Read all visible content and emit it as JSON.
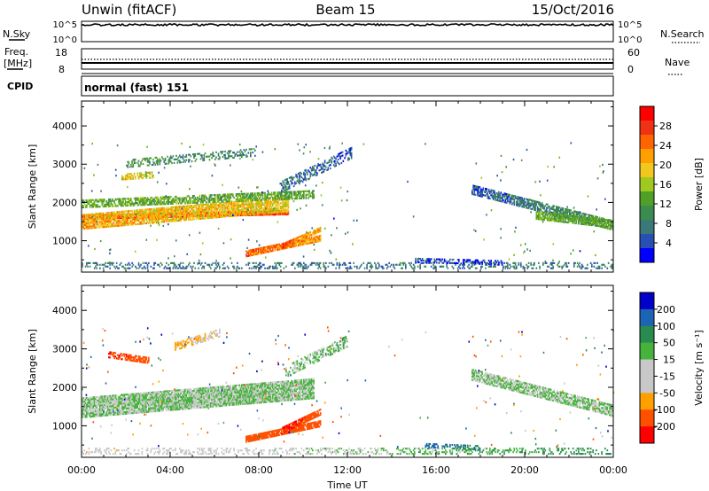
{
  "header": {
    "station": "Unwin (fitACF)",
    "beam": "Beam 15",
    "date": "15/Oct/2016"
  },
  "noise_panel": {
    "left_label": "N.Sky",
    "right_label": "N.Search",
    "ticks_left": [
      "10^5",
      "10^0"
    ],
    "ticks_right": [
      "10^5",
      "10^0"
    ]
  },
  "freq_panel": {
    "left_label_1": "Freq.",
    "left_label_2": "[MHz]",
    "right_label": "Nave",
    "ticks_left": [
      "18",
      "8"
    ],
    "ticks_right": [
      "60",
      "0"
    ]
  },
  "cpid": {
    "label": "CPID",
    "mode": "normal (fast) 151"
  },
  "chart_data": [
    {
      "type": "heatmap",
      "name": "Power",
      "ylabel": "Slant Range [km]",
      "xlabel": "Time UT",
      "x_ticks": [
        "00:00",
        "04:00",
        "08:00",
        "12:00",
        "16:00",
        "20:00",
        "00:00"
      ],
      "xlim_hours": [
        0,
        24
      ],
      "y_ticks": [
        1000,
        2000,
        3000,
        4000
      ],
      "ylim": [
        180,
        4650
      ],
      "colorbar_label": "Power [dB]",
      "colorbar_ticks": [
        "28",
        "24",
        "20",
        "16",
        "12",
        "8",
        "4"
      ],
      "colorbar_values": [
        28,
        24,
        20,
        16,
        12,
        8,
        4
      ],
      "colors": [
        "#0000ff",
        "#2850b4",
        "#3c7878",
        "#3c8c50",
        "#50a028",
        "#78b414",
        "#a0c81e",
        "#f0c81e",
        "#ffa000",
        "#ff6400",
        "#f03214",
        "#ff0000"
      ],
      "bands": [
        {
          "t0": 0.0,
          "t1": 9.3,
          "r0": 1600,
          "r1": 1720,
          "v0": 27,
          "v1": 27,
          "th": 100,
          "dens": 0.97
        },
        {
          "t0": 0.0,
          "t1": 9.3,
          "r0": 1480,
          "r1": 1940,
          "v0": 22,
          "v1": 20,
          "th": 380,
          "dens": 0.8
        },
        {
          "t0": 0.0,
          "t1": 10.5,
          "r0": 1950,
          "r1": 2200,
          "v0": 14,
          "v1": 13,
          "th": 200,
          "dens": 0.65
        },
        {
          "t0": 7.4,
          "t1": 10.8,
          "r0": 640,
          "r1": 1050,
          "v0": 26,
          "v1": 22,
          "th": 140,
          "dens": 0.9
        },
        {
          "t0": 9.0,
          "t1": 10.8,
          "r0": 850,
          "r1": 1300,
          "v0": 27,
          "v1": 20,
          "th": 120,
          "dens": 0.85
        },
        {
          "t0": 2.0,
          "t1": 7.8,
          "r0": 3000,
          "r1": 3300,
          "v0": 11,
          "v1": 9,
          "th": 200,
          "dens": 0.4
        },
        {
          "t0": 1.8,
          "t1": 3.2,
          "r0": 2650,
          "r1": 2700,
          "v0": 21,
          "v1": 18,
          "th": 140,
          "dens": 0.5
        },
        {
          "t0": 9.0,
          "t1": 12.2,
          "r0": 2400,
          "r1": 3300,
          "v0": 8,
          "v1": 6,
          "th": 300,
          "dens": 0.45
        },
        {
          "t0": 17.6,
          "t1": 24.0,
          "r0": 2320,
          "r1": 1380,
          "v0": 6,
          "v1": 12,
          "th": 240,
          "dens": 0.7
        },
        {
          "t0": 20.5,
          "t1": 24.0,
          "r0": 1650,
          "r1": 1420,
          "v0": 14,
          "v1": 12,
          "th": 200,
          "dens": 0.8
        },
        {
          "t0": 0.0,
          "t1": 24.0,
          "r0": 330,
          "r1": 330,
          "v0": 8,
          "v1": 8,
          "th": 140,
          "dens": 0.3
        },
        {
          "t0": 15.0,
          "t1": 19.0,
          "r0": 480,
          "r1": 420,
          "v0": 5,
          "v1": 5,
          "th": 120,
          "dens": 0.45
        }
      ]
    },
    {
      "type": "heatmap",
      "name": "Velocity",
      "ylabel": "Slant Range [km]",
      "xlabel": "Time UT",
      "x_ticks": [
        "00:00",
        "04:00",
        "08:00",
        "12:00",
        "16:00",
        "20:00",
        "00:00"
      ],
      "xlim_hours": [
        0,
        24
      ],
      "y_ticks": [
        1000,
        2000,
        3000,
        4000
      ],
      "ylim": [
        180,
        4650
      ],
      "colorbar_label": "Velocity [m s⁻¹]",
      "colorbar_ticks": [
        "200",
        "100",
        "50",
        "15",
        "-15",
        "-50",
        "-100",
        "-200"
      ],
      "colorbar_values": [
        200,
        100,
        50,
        15,
        -15,
        -50,
        -100,
        -200
      ],
      "colors": [
        "#ff0000",
        "#ff3c00",
        "#ff7800",
        "#ffa000",
        "#c8c8c8",
        "#c8c8c8",
        "#28b428",
        "#78c83c",
        "#28a050",
        "#146eb4",
        "#0000c8"
      ],
      "bands": [
        {
          "t0": 0.0,
          "t1": 10.5,
          "r0": 1450,
          "r1": 1950,
          "v0": 0,
          "v1": 0,
          "th": 500,
          "dens": 0.9
        },
        {
          "t0": 7.4,
          "t1": 10.8,
          "r0": 640,
          "r1": 1050,
          "v0": -150,
          "v1": -180,
          "th": 160,
          "dens": 0.9
        },
        {
          "t0": 9.0,
          "t1": 10.8,
          "r0": 850,
          "r1": 1350,
          "v0": -210,
          "v1": -180,
          "th": 140,
          "dens": 0.85
        },
        {
          "t0": 1.2,
          "t1": 3.0,
          "r0": 2850,
          "r1": 2700,
          "v0": -200,
          "v1": -180,
          "th": 180,
          "dens": 0.6
        },
        {
          "t0": 4.2,
          "t1": 6.2,
          "r0": 3050,
          "r1": 3400,
          "v0": -60,
          "v1": -40,
          "th": 200,
          "dens": 0.5
        },
        {
          "t0": 9.2,
          "t1": 12.0,
          "r0": 2400,
          "r1": 3200,
          "v0": 0,
          "v1": 5,
          "th": 300,
          "dens": 0.45
        },
        {
          "t0": 17.6,
          "t1": 24.0,
          "r0": 2320,
          "r1": 1380,
          "v0": 0,
          "v1": 0,
          "th": 300,
          "dens": 0.75
        },
        {
          "t0": 0.0,
          "t1": 24.0,
          "r0": 320,
          "r1": 320,
          "v0": -40,
          "v1": 30,
          "th": 140,
          "dens": 0.3
        },
        {
          "t0": 15.5,
          "t1": 18.0,
          "r0": 480,
          "r1": 420,
          "v0": 60,
          "v1": 40,
          "th": 120,
          "dens": 0.4
        }
      ]
    }
  ]
}
